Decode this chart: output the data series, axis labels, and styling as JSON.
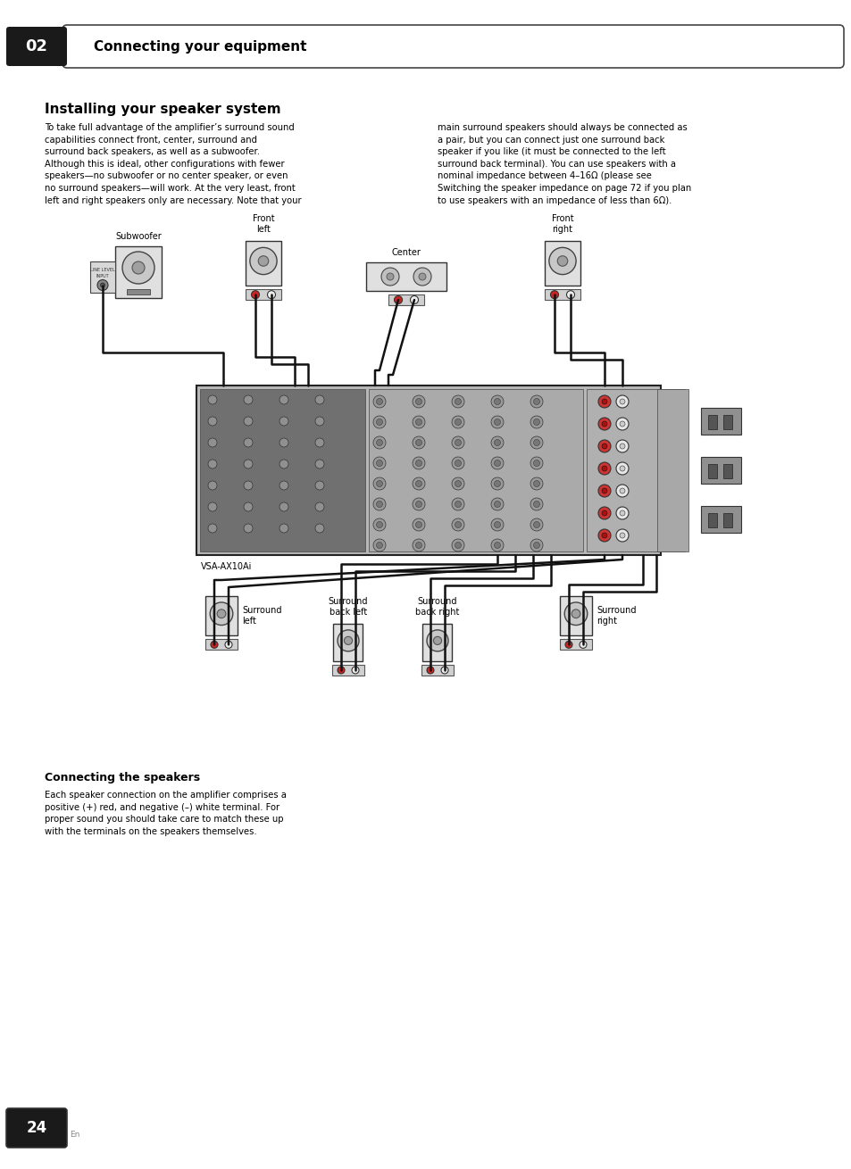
{
  "page_bg": "#ffffff",
  "header_bg": "#1a1a1a",
  "header_text": "02",
  "header_label": "Connecting your equipment",
  "title": "Installing your speaker system",
  "body_text_left": "To take full advantage of the amplifier’s surround sound\ncapabilities connect front, center, surround and\nsurround back speakers, as well as a subwoofer.\nAlthough this is ideal, other configurations with fewer\nspeakers—no subwoofer or no center speaker, or even\nno surround speakers—will work. At the very least, front\nleft and right speakers only are necessary. Note that your",
  "body_text_right": "main surround speakers should always be connected as\na pair, but you can connect just one surround back\nspeaker if you like (it must be connected to the left\nsurround back terminal). You can use speakers with a\nnominal impedance between 4–16Ω (please see\nSwitching the speaker impedance on page 72 if you plan\nto use speakers with an impedance of less than 6Ω).",
  "connecting_speakers_title": "Connecting the speakers",
  "connecting_speakers_text": "Each speaker connection on the amplifier comprises a\npositive (+) red, and negative (–) white terminal. For\nproper sound you should take care to match these up\nwith the terminals on the speakers themselves.",
  "footer_page": "24",
  "footer_lang": "En",
  "amp_label": "VSA-AX10Ai"
}
